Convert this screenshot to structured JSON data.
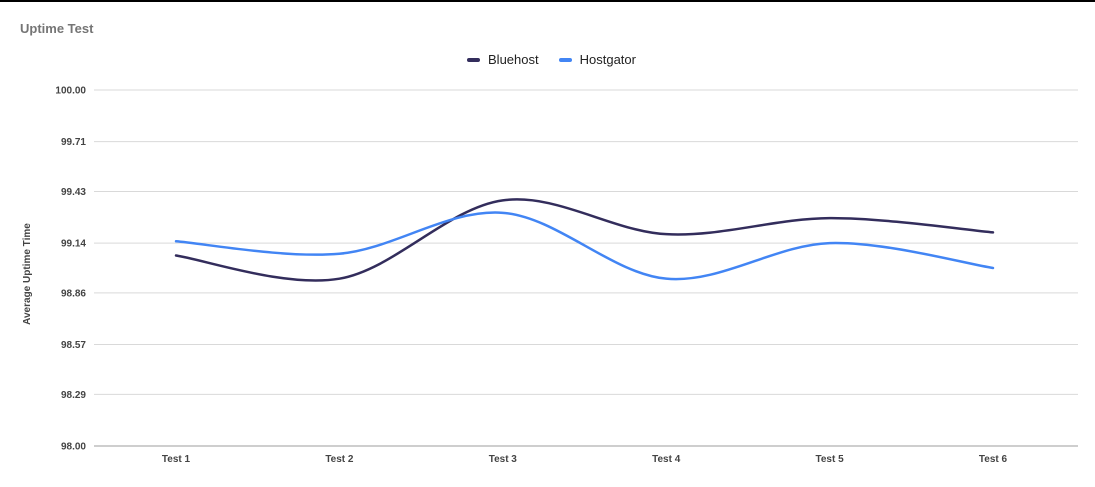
{
  "chart_data": {
    "type": "line",
    "title": "Uptime Test",
    "xlabel": "",
    "ylabel": "Average Uptime Time",
    "categories": [
      "Test 1",
      "Test 2",
      "Test 3",
      "Test 4",
      "Test 5",
      "Test 6"
    ],
    "y_ticks": [
      "98.00",
      "98.29",
      "98.57",
      "98.86",
      "99.14",
      "99.43",
      "99.71",
      "100.00"
    ],
    "ylim": [
      98.0,
      100.0
    ],
    "grid": true,
    "legend_position": "top-center",
    "series": [
      {
        "name": "Bluehost",
        "color": "#332d5c",
        "values": [
          99.07,
          98.94,
          99.38,
          99.19,
          99.28,
          99.2
        ]
      },
      {
        "name": "Hostgator",
        "color": "#4285f4",
        "values": [
          99.15,
          99.08,
          99.31,
          98.94,
          99.14,
          99.0
        ]
      }
    ]
  }
}
